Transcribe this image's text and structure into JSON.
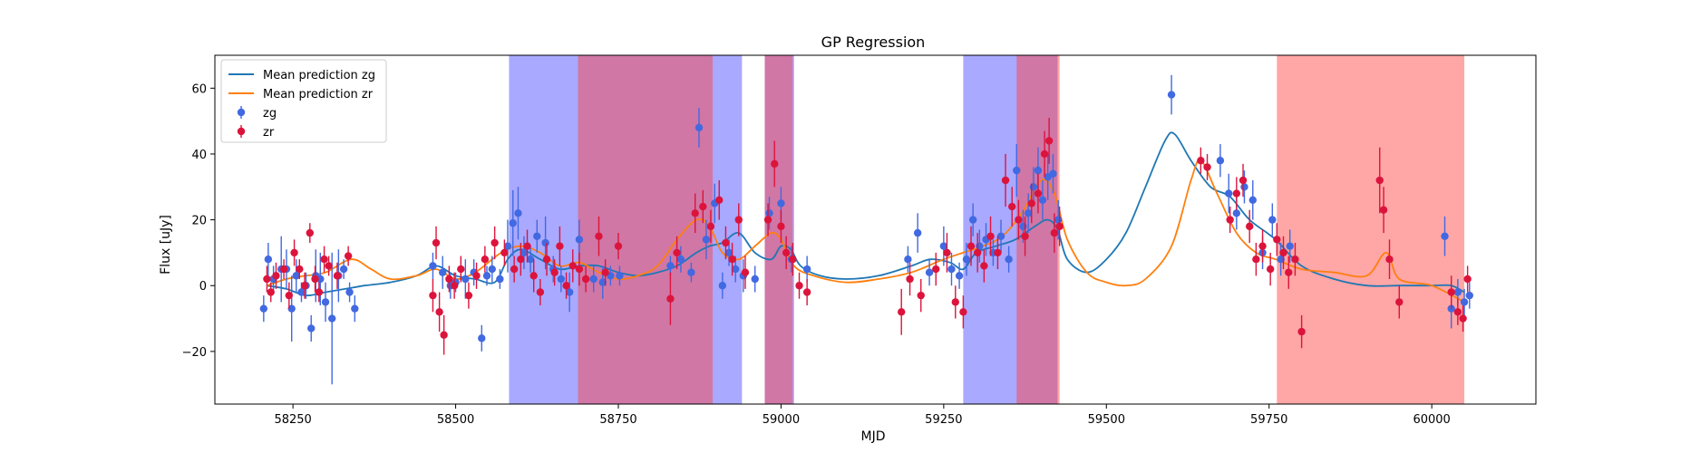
{
  "chart_data": {
    "type": "scatter",
    "title": "GP Regression",
    "xlabel": "MJD",
    "ylabel": "Flux [uJy]",
    "xlim": [
      58130,
      60160
    ],
    "ylim": [
      -36,
      70
    ],
    "xticks": [
      58250,
      58500,
      58750,
      59000,
      59250,
      59500,
      59750,
      60000
    ],
    "yticks": [
      -20,
      0,
      20,
      40,
      60
    ],
    "grid": false,
    "legend": {
      "position": "top-left",
      "entries": [
        "Mean prediction zg",
        "Mean prediction zr",
        "zg",
        "zr"
      ]
    },
    "colors": {
      "zg_line": "#1f77b4",
      "zr_line": "#ff7f0e",
      "zg_points": "#4169e1",
      "zr_points": "#dc143c",
      "zg_band": "#a6a6ff",
      "zr_band": "#ffa6a6",
      "overlap_band": "#c462a4"
    },
    "shaded_regions": [
      {
        "band": "zg",
        "x": [
          58582,
          58940
        ]
      },
      {
        "band": "zg",
        "x": [
          58975,
          59020
        ]
      },
      {
        "band": "zg",
        "x": [
          59280,
          59425
        ]
      },
      {
        "band": "zr",
        "x": [
          58688,
          58895
        ]
      },
      {
        "band": "zr",
        "x": [
          58975,
          59018
        ]
      },
      {
        "band": "zr",
        "x": [
          59362,
          59428
        ]
      },
      {
        "band": "zr",
        "x": [
          59762,
          60050
        ]
      }
    ],
    "series": [
      {
        "name": "Mean prediction zg",
        "kind": "line",
        "x": [
          58210,
          58240,
          58270,
          58300,
          58330,
          58360,
          58400,
          58440,
          58470,
          58500,
          58530,
          58560,
          58580,
          58600,
          58630,
          58660,
          58690,
          58720,
          58750,
          58780,
          58810,
          58840,
          58870,
          58890,
          58910,
          58935,
          58960,
          58985,
          59000,
          59015,
          59030,
          59060,
          59100,
          59150,
          59200,
          59230,
          59260,
          59280,
          59300,
          59330,
          59360,
          59390,
          59410,
          59425,
          59440,
          59470,
          59500,
          59530,
          59560,
          59590,
          59605,
          59630,
          59660,
          59690,
          59720,
          59760,
          59800,
          59850,
          59900,
          59950,
          60000,
          60030,
          60050
        ],
        "y": [
          0,
          -1,
          -3,
          -2,
          -1,
          0,
          1,
          3,
          6,
          3,
          2,
          1,
          8,
          11,
          8,
          5,
          6,
          6,
          4,
          3,
          4,
          6,
          10,
          12,
          13,
          16,
          10,
          8,
          12,
          11,
          6,
          3,
          2,
          3,
          6,
          8,
          7,
          5,
          10,
          12,
          14,
          18,
          20,
          17,
          8,
          4,
          8,
          16,
          30,
          44,
          46,
          38,
          30,
          27,
          20,
          14,
          6,
          2,
          0,
          0,
          0,
          0,
          -2
        ]
      },
      {
        "name": "Mean prediction zr",
        "kind": "line",
        "x": [
          58210,
          58240,
          58270,
          58300,
          58340,
          58370,
          58400,
          58440,
          58470,
          58500,
          58530,
          58570,
          58600,
          58630,
          58660,
          58690,
          58720,
          58750,
          58780,
          58810,
          58840,
          58870,
          58890,
          58910,
          58935,
          58960,
          58985,
          59000,
          59020,
          59050,
          59100,
          59150,
          59200,
          59250,
          59280,
          59310,
          59340,
          59370,
          59400,
          59420,
          59440,
          59470,
          59500,
          59530,
          59560,
          59600,
          59630,
          59645,
          59670,
          59700,
          59730,
          59760,
          59800,
          59850,
          59900,
          59930,
          59950,
          60000,
          60050
        ],
        "y": [
          0,
          2,
          3,
          4,
          8,
          5,
          2,
          3,
          5,
          2,
          4,
          10,
          12,
          10,
          6,
          7,
          4,
          2,
          3,
          6,
          14,
          20,
          18,
          10,
          8,
          12,
          16,
          14,
          6,
          3,
          1,
          2,
          4,
          8,
          10,
          12,
          15,
          22,
          32,
          28,
          14,
          4,
          1,
          0,
          2,
          12,
          32,
          38,
          28,
          16,
          10,
          8,
          5,
          4,
          3,
          10,
          2,
          0,
          -5
        ]
      },
      {
        "name": "zg",
        "kind": "errorbar",
        "x": [
          58205,
          58212,
          58220,
          58232,
          58240,
          58248,
          58255,
          58263,
          58270,
          58278,
          58285,
          58292,
          58300,
          58310,
          58320,
          58328,
          58337,
          58345,
          58465,
          58480,
          58492,
          58500,
          58515,
          58528,
          58540,
          58548,
          58556,
          58568,
          58580,
          58588,
          58596,
          58605,
          58615,
          58625,
          58638,
          58650,
          58662,
          58675,
          58690,
          58712,
          58726,
          58738,
          58752,
          58830,
          58846,
          58862,
          58874,
          58885,
          58898,
          58910,
          58920,
          58930,
          58942,
          58960,
          58982,
          59000,
          59016,
          59040,
          59195,
          59210,
          59228,
          59250,
          59262,
          59274,
          59285,
          59295,
          59305,
          59315,
          59326,
          59338,
          59350,
          59362,
          59372,
          59380,
          59388,
          59395,
          59402,
          59410,
          59418,
          59426,
          59600,
          59675,
          59688,
          59700,
          59712,
          59725,
          59740,
          59755,
          59768,
          59782,
          60020,
          60030,
          60040,
          60050,
          60058
        ],
        "y": [
          -7,
          8,
          2,
          5,
          5,
          -7,
          3,
          -2,
          0,
          -13,
          3,
          2,
          -5,
          -10,
          3,
          5,
          -2,
          -7,
          6,
          4,
          0,
          1,
          2,
          4,
          -16,
          3,
          5,
          2,
          12,
          19,
          22,
          10,
          8,
          15,
          13,
          5,
          2,
          -2,
          14,
          2,
          1,
          3,
          3,
          6,
          8,
          4,
          48,
          14,
          25,
          0,
          10,
          5,
          3,
          2,
          22,
          25,
          8,
          5,
          8,
          16,
          4,
          12,
          5,
          3,
          8,
          20,
          12,
          14,
          10,
          15,
          8,
          35,
          18,
          22,
          30,
          35,
          26,
          33,
          34,
          20,
          58,
          38,
          28,
          22,
          30,
          26,
          10,
          20,
          8,
          12,
          15,
          -7,
          -2,
          -5,
          -3
        ],
        "yerr": [
          4,
          5,
          4,
          10,
          6,
          10,
          5,
          3,
          4,
          4,
          8,
          8,
          6,
          20,
          8,
          3,
          3,
          4,
          4,
          5,
          4,
          3,
          6,
          4,
          4,
          3,
          4,
          3,
          8,
          10,
          8,
          5,
          4,
          5,
          8,
          4,
          4,
          6,
          6,
          4,
          5,
          3,
          3,
          3,
          4,
          3,
          6,
          6,
          6,
          4,
          4,
          4,
          5,
          4,
          5,
          5,
          4,
          4,
          4,
          6,
          4,
          6,
          5,
          4,
          5,
          5,
          5,
          5,
          4,
          5,
          4,
          8,
          5,
          6,
          6,
          7,
          6,
          7,
          6,
          6,
          6,
          5,
          6,
          5,
          5,
          6,
          5,
          5,
          5,
          5,
          6,
          6,
          4,
          4,
          4
        ]
      },
      {
        "name": "zr",
        "kind": "errorbar",
        "x": [
          58210,
          58216,
          58224,
          58236,
          58244,
          58252,
          58260,
          58268,
          58276,
          58284,
          58290,
          58298,
          58305,
          58318,
          58335,
          58465,
          58470,
          58475,
          58482,
          58490,
          58498,
          58508,
          58520,
          58532,
          58545,
          58560,
          58575,
          58590,
          58600,
          58610,
          58620,
          58630,
          58640,
          58652,
          58660,
          58670,
          58680,
          58690,
          58700,
          58720,
          58730,
          58750,
          58830,
          58840,
          58868,
          58880,
          58892,
          58905,
          58915,
          58925,
          58935,
          58945,
          58980,
          58990,
          59000,
          59008,
          59018,
          59028,
          59040,
          59185,
          59198,
          59215,
          59238,
          59255,
          59268,
          59280,
          59292,
          59302,
          59312,
          59322,
          59333,
          59345,
          59355,
          59365,
          59375,
          59385,
          59395,
          59405,
          59412,
          59420,
          59428,
          59645,
          59655,
          59690,
          59700,
          59710,
          59720,
          59730,
          59740,
          59752,
          59762,
          59772,
          59780,
          59790,
          59800,
          59920,
          59926,
          59935,
          59950,
          60030,
          60040,
          60048,
          60055
        ],
        "y": [
          2,
          -2,
          3,
          5,
          -3,
          10,
          5,
          0,
          16,
          2,
          -2,
          8,
          6,
          3,
          9,
          -3,
          13,
          -8,
          -15,
          2,
          0,
          5,
          -3,
          3,
          8,
          13,
          10,
          5,
          8,
          12,
          3,
          -2,
          8,
          4,
          12,
          0,
          6,
          5,
          2,
          15,
          4,
          12,
          -4,
          10,
          22,
          24,
          18,
          26,
          13,
          8,
          20,
          4,
          20,
          37,
          18,
          10,
          8,
          0,
          -2,
          -8,
          2,
          -3,
          5,
          10,
          -5,
          -8,
          12,
          10,
          6,
          15,
          10,
          32,
          24,
          20,
          15,
          25,
          28,
          40,
          44,
          16,
          18,
          38,
          36,
          20,
          28,
          32,
          18,
          8,
          12,
          5,
          14,
          10,
          4,
          8,
          -14,
          32,
          23,
          8,
          -5,
          -2,
          -8,
          -10,
          2
        ],
        "yerr": [
          4,
          3,
          4,
          3,
          4,
          4,
          3,
          4,
          3,
          4,
          3,
          4,
          3,
          4,
          3,
          5,
          5,
          6,
          6,
          4,
          4,
          4,
          4,
          4,
          4,
          5,
          4,
          4,
          5,
          5,
          5,
          4,
          5,
          4,
          6,
          4,
          5,
          5,
          4,
          6,
          4,
          4,
          8,
          5,
          6,
          5,
          5,
          6,
          5,
          5,
          5,
          5,
          5,
          7,
          5,
          5,
          5,
          4,
          4,
          7,
          5,
          5,
          5,
          6,
          5,
          5,
          6,
          6,
          5,
          6,
          5,
          8,
          6,
          6,
          6,
          6,
          6,
          7,
          7,
          6,
          6,
          4,
          4,
          4,
          5,
          5,
          5,
          5,
          5,
          5,
          5,
          5,
          5,
          5,
          5,
          10,
          7,
          6,
          5,
          5,
          4,
          4,
          4
        ]
      }
    ]
  }
}
